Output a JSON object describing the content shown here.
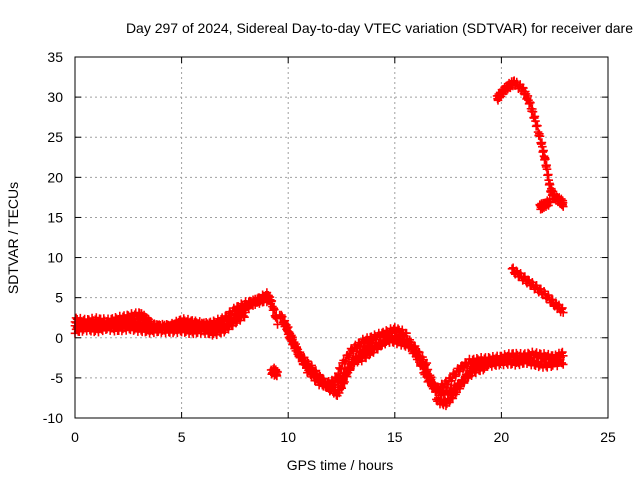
{
  "chart_data": {
    "type": "scatter",
    "title": "Day 297 of 2024, Sidereal Day-to-day VTEC variation (SDTVAR) for receiver dare",
    "xlabel": "GPS time / hours",
    "ylabel": "SDTVAR / TECUs",
    "xlim": [
      0,
      25
    ],
    "ylim": [
      -10,
      35
    ],
    "xticks": [
      0,
      5,
      10,
      15,
      20,
      25
    ],
    "yticks": [
      -10,
      -5,
      0,
      5,
      10,
      15,
      20,
      25,
      30,
      35
    ],
    "grid": true,
    "legend": "none",
    "marker": "plus",
    "series": [
      {
        "name": "SDTVAR",
        "color": "#ff0000",
        "tracks": [
          [
            [
              0.0,
              1.5
            ],
            [
              0.5,
              1.7
            ],
            [
              1.0,
              1.4
            ],
            [
              1.5,
              1.8
            ],
            [
              2.0,
              1.6
            ],
            [
              2.5,
              2.0
            ],
            [
              3.0,
              1.6
            ],
            [
              3.5,
              1.2
            ],
            [
              4.0,
              1.4
            ],
            [
              4.5,
              1.3
            ],
            [
              5.0,
              1.7
            ],
            [
              5.5,
              1.6
            ],
            [
              6.0,
              1.5
            ],
            [
              6.5,
              1.8
            ],
            [
              7.0,
              2.3
            ],
            [
              7.5,
              3.5
            ],
            [
              8.0,
              4.2
            ],
            [
              8.5,
              4.5
            ],
            [
              9.0,
              4.8
            ]
          ],
          [
            [
              0.0,
              2.2
            ],
            [
              0.5,
              2.0
            ],
            [
              1.0,
              2.2
            ],
            [
              1.5,
              2.0
            ],
            [
              2.0,
              2.3
            ],
            [
              2.5,
              2.6
            ],
            [
              3.0,
              2.9
            ],
            [
              3.3,
              2.4
            ],
            [
              3.6,
              1.6
            ],
            [
              4.0,
              1.2
            ],
            [
              4.5,
              1.4
            ],
            [
              5.0,
              2.1
            ],
            [
              5.5,
              1.9
            ],
            [
              6.0,
              1.6
            ],
            [
              6.5,
              1.3
            ],
            [
              7.0,
              1.5
            ],
            [
              7.5,
              2.6
            ],
            [
              8.0,
              3.8
            ],
            [
              8.5,
              4.6
            ],
            [
              9.0,
              5.3
            ],
            [
              9.2,
              4.5
            ],
            [
              9.5,
              2.0
            ]
          ],
          [
            [
              0.0,
              0.9
            ],
            [
              0.5,
              1.2
            ],
            [
              1.0,
              1.0
            ],
            [
              1.5,
              1.3
            ],
            [
              2.0,
              1.1
            ],
            [
              2.5,
              1.3
            ],
            [
              3.0,
              1.1
            ],
            [
              3.5,
              0.9
            ],
            [
              4.0,
              1.0
            ],
            [
              4.5,
              0.9
            ],
            [
              5.0,
              1.0
            ],
            [
              5.5,
              0.8
            ],
            [
              6.0,
              0.9
            ],
            [
              6.5,
              0.6
            ],
            [
              7.0,
              1.0
            ],
            [
              7.5,
              2.0
            ],
            [
              8.0,
              3.0
            ]
          ],
          [
            [
              9.3,
              -4.0
            ],
            [
              9.5,
              -4.5
            ],
            [
              9.2,
              -4.2
            ]
          ],
          [
            [
              9.6,
              3.0
            ],
            [
              10.0,
              1.0
            ],
            [
              10.5,
              -2.0
            ],
            [
              11.0,
              -3.5
            ],
            [
              11.5,
              -5.0
            ],
            [
              12.0,
              -6.5
            ],
            [
              12.5,
              -3.5
            ],
            [
              13.0,
              -1.5
            ],
            [
              13.5,
              -0.5
            ],
            [
              14.0,
              0.0
            ],
            [
              14.5,
              0.5
            ],
            [
              15.0,
              1.0
            ],
            [
              15.5,
              0.5
            ],
            [
              16.0,
              -2.0
            ],
            [
              16.5,
              -5.0
            ],
            [
              17.0,
              -6.5
            ],
            [
              17.5,
              -5.5
            ],
            [
              18.0,
              -4.0
            ],
            [
              18.5,
              -3.0
            ],
            [
              19.0,
              -2.8
            ],
            [
              19.5,
              -2.7
            ],
            [
              20.0,
              -2.5
            ],
            [
              20.5,
              -2.2
            ],
            [
              21.0,
              -2.3
            ],
            [
              21.5,
              -2.1
            ],
            [
              22.0,
              -2.3
            ],
            [
              22.5,
              -2.5
            ],
            [
              22.9,
              -2.0
            ]
          ],
          [
            [
              9.8,
              2.0
            ],
            [
              10.2,
              -0.5
            ],
            [
              10.7,
              -3.0
            ],
            [
              11.2,
              -4.5
            ],
            [
              11.7,
              -5.8
            ],
            [
              12.2,
              -5.5
            ],
            [
              12.7,
              -4.5
            ],
            [
              13.2,
              -2.5
            ],
            [
              13.7,
              -1.0
            ],
            [
              14.2,
              -1.0
            ],
            [
              14.7,
              -0.2
            ],
            [
              15.2,
              -0.5
            ],
            [
              15.7,
              -1.0
            ],
            [
              16.2,
              -3.0
            ],
            [
              16.7,
              -5.5
            ],
            [
              17.2,
              -7.0
            ],
            [
              17.7,
              -6.5
            ],
            [
              18.2,
              -5.5
            ],
            [
              18.7,
              -3.5
            ],
            [
              19.2,
              -3.3
            ],
            [
              19.7,
              -3.2
            ],
            [
              20.2,
              -3.0
            ],
            [
              20.7,
              -3.1
            ],
            [
              21.2,
              -2.9
            ],
            [
              21.7,
              -3.3
            ],
            [
              22.2,
              -3.4
            ],
            [
              22.9,
              -3.0
            ]
          ],
          [
            [
              10.0,
              0.5
            ],
            [
              10.4,
              -1.5
            ],
            [
              10.9,
              -4.0
            ],
            [
              11.4,
              -5.5
            ],
            [
              11.9,
              -6.0
            ],
            [
              12.3,
              -7.0
            ],
            [
              12.6,
              -5.5
            ],
            [
              13.0,
              -3.0
            ],
            [
              13.5,
              -2.5
            ],
            [
              14.0,
              -1.5
            ],
            [
              14.5,
              -0.5
            ],
            [
              15.0,
              0.0
            ],
            [
              15.5,
              -0.3
            ],
            [
              16.0,
              -1.5
            ],
            [
              16.5,
              -3.5
            ],
            [
              17.0,
              -7.8
            ],
            [
              17.4,
              -8.2
            ],
            [
              17.8,
              -7.0
            ],
            [
              18.3,
              -5.0
            ],
            [
              18.8,
              -4.0
            ],
            [
              19.3,
              -3.6
            ]
          ],
          [
            [
              19.8,
              29.8
            ],
            [
              20.0,
              30.5
            ],
            [
              20.3,
              31.3
            ],
            [
              20.6,
              31.8
            ],
            [
              21.0,
              31.0
            ],
            [
              21.3,
              29.5
            ],
            [
              21.6,
              27.0
            ],
            [
              21.9,
              24.0
            ],
            [
              22.1,
              21.5
            ],
            [
              22.3,
              18.5
            ],
            [
              22.5,
              17.5
            ],
            [
              22.8,
              17.0
            ],
            [
              22.9,
              16.7
            ]
          ],
          [
            [
              21.8,
              16.3
            ],
            [
              22.0,
              16.5
            ],
            [
              22.3,
              17.0
            ]
          ],
          [
            [
              20.5,
              8.5
            ],
            [
              21.0,
              7.5
            ],
            [
              21.5,
              6.5
            ],
            [
              22.0,
              5.5
            ],
            [
              22.5,
              4.2
            ],
            [
              22.9,
              3.3
            ]
          ]
        ]
      }
    ]
  }
}
